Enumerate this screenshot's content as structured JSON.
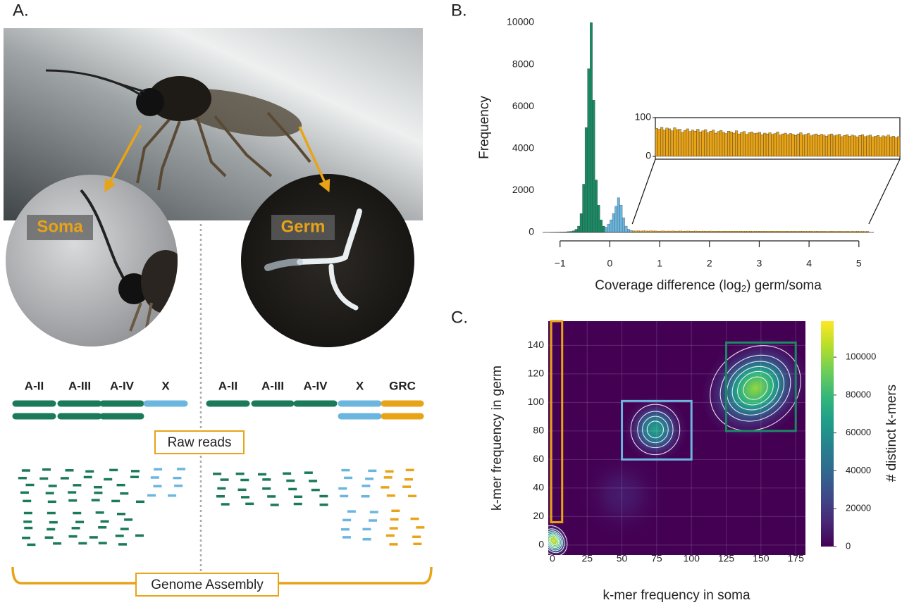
{
  "panel_a": {
    "panel_label": "A.",
    "soma": "Soma",
    "germ": "Germ",
    "soma_chromosomes": [
      "A-II",
      "A-III",
      "A-IV",
      "X"
    ],
    "germ_chromosomes": [
      "A-II",
      "A-III",
      "A-IV",
      "X",
      "GRC"
    ],
    "raw_reads": "Raw reads",
    "genome_assembly": "Genome Assembly"
  },
  "chart_data": [
    {
      "type": "histogram",
      "panel_label": "B.",
      "y_label": "Frequency",
      "x_label": [
        "Coverage difference (log",
        "2",
        ") germ/soma"
      ],
      "xlim": [
        -1.35,
        5.3
      ],
      "ylim": [
        0,
        10000
      ],
      "xticks": [
        {
          "value": -1,
          "label": "−1"
        },
        0,
        1,
        2,
        3,
        4,
        5
      ],
      "yticks": [
        0,
        2000,
        4000,
        6000,
        8000,
        10000
      ],
      "series": [
        {
          "color": "#1b8a64",
          "bins": [
            -1.2,
            -1.15,
            -1.1,
            -1.05,
            -1,
            -0.95,
            -0.9,
            -0.85,
            -0.8,
            -0.75,
            -0.7,
            -0.65,
            -0.6,
            -0.55,
            -0.5,
            -0.45,
            -0.4,
            -0.35,
            -0.3,
            -0.25,
            -0.2,
            -0.15,
            -0.1
          ],
          "values": [
            10,
            10,
            15,
            15,
            20,
            20,
            30,
            40,
            50,
            80,
            150,
            300,
            900,
            2300,
            5000,
            7800,
            10000,
            6300,
            2500,
            1300,
            600,
            300
          ]
        },
        {
          "color": "#6bb6df",
          "bins": [
            -0.1,
            -0.05,
            0,
            0.05,
            0.1,
            0.15,
            0.2,
            0.25,
            0.3,
            0.35,
            0.4,
            0.45
          ],
          "values": [
            250,
            400,
            600,
            900,
            1250,
            1650,
            1300,
            700,
            300,
            150,
            90
          ]
        },
        {
          "color": "#e8a317",
          "bins": [
            0.45,
            0.5,
            0.55,
            0.6,
            0.65,
            0.7,
            0.75,
            0.8,
            0.85,
            0.9,
            0.95,
            1,
            1.05,
            1.1,
            1.15,
            1.2,
            1.25,
            1.3,
            1.35,
            1.4,
            1.45,
            1.5,
            1.55,
            1.6,
            1.65,
            1.7,
            1.75,
            1.8,
            1.85,
            1.9,
            1.95,
            2,
            2.05,
            2.1,
            2.15,
            2.2,
            2.25,
            2.3,
            2.35,
            2.4,
            2.45,
            2.5,
            2.55,
            2.6,
            2.65,
            2.7,
            2.75,
            2.8,
            2.85,
            2.9,
            2.95,
            3,
            3.05,
            3.1,
            3.15,
            3.2,
            3.25,
            3.3,
            3.35,
            3.4,
            3.45,
            3.5,
            3.55,
            3.6,
            3.65,
            3.7,
            3.75,
            3.8,
            3.85,
            3.9,
            3.95,
            4,
            4.05,
            4.1,
            4.15,
            4.2,
            4.25,
            4.3,
            4.35,
            4.4,
            4.45,
            4.5,
            4.55,
            4.6,
            4.65,
            4.7,
            4.75,
            4.8,
            4.85,
            4.9,
            4.95,
            5,
            5.05,
            5.1,
            5.15,
            5.2
          ],
          "values": [
            72,
            70,
            75,
            68,
            73,
            71,
            66,
            74,
            69,
            70,
            62,
            67,
            71,
            64,
            68,
            65,
            70,
            63,
            66,
            69,
            61,
            65,
            68,
            60,
            64,
            67,
            62,
            59,
            65,
            63,
            60,
            66,
            58,
            62,
            64,
            57,
            61,
            63,
            59,
            60,
            62,
            56,
            60,
            58,
            61,
            57,
            59,
            63,
            55,
            58,
            60,
            56,
            59,
            57,
            54,
            58,
            61,
            55,
            57,
            59,
            53,
            56,
            58,
            54,
            57,
            55,
            52,
            56,
            58,
            53,
            55,
            57,
            51,
            54,
            56,
            52,
            55,
            53,
            50,
            54,
            56,
            51,
            53,
            55,
            50,
            52,
            54,
            49,
            53,
            51,
            55,
            50,
            52,
            48,
            51
          ]
        }
      ],
      "inset": {
        "series": 2,
        "xlim": [
          0.45,
          5.2
        ],
        "ylim": [
          0,
          100
        ],
        "yticks": [
          0,
          100
        ]
      }
    },
    {
      "type": "heatmap",
      "panel_label": "C.",
      "x_label": "k-mer frequency in soma",
      "y_label": "k-mer frequency in germ",
      "xlim": [
        -3,
        182
      ],
      "ylim": [
        -7,
        157
      ],
      "xticks": [
        0,
        25,
        50,
        75,
        100,
        125,
        150,
        175
      ],
      "yticks": [
        0,
        20,
        40,
        60,
        80,
        100,
        120,
        140
      ],
      "grid": true,
      "colorbar": {
        "label": "# distinct k-mers",
        "lim": [
          0,
          119000
        ],
        "ticks": [
          0,
          20000,
          40000,
          60000,
          80000,
          100000
        ]
      },
      "peaks": [
        {
          "x": 146,
          "y": 110,
          "sx": 16,
          "sy": 13,
          "angle": 35,
          "value": 100000
        },
        {
          "x": 74,
          "y": 81,
          "sx": 9,
          "sy": 9,
          "angle": 0,
          "value": 68000
        },
        {
          "x": 50,
          "y": 35,
          "sx": 12,
          "sy": 12,
          "angle": 0,
          "value": 9000
        },
        {
          "x": 1,
          "y": 3,
          "sx": 4,
          "sy": 5,
          "angle": 30,
          "value": 118000
        }
      ],
      "contour_levels": [
        10000,
        25000,
        40000,
        55000,
        70000,
        85000,
        100000
      ],
      "boxes": [
        {
          "x": [
            -1,
            7
          ],
          "y": [
            16,
            157
          ],
          "color": "#e8a317"
        },
        {
          "x": [
            50,
            100
          ],
          "y": [
            60,
            101
          ],
          "color": "#6bb6df"
        },
        {
          "x": [
            125,
            175
          ],
          "y": [
            80,
            142
          ],
          "color": "#1b8a64"
        }
      ]
    }
  ]
}
